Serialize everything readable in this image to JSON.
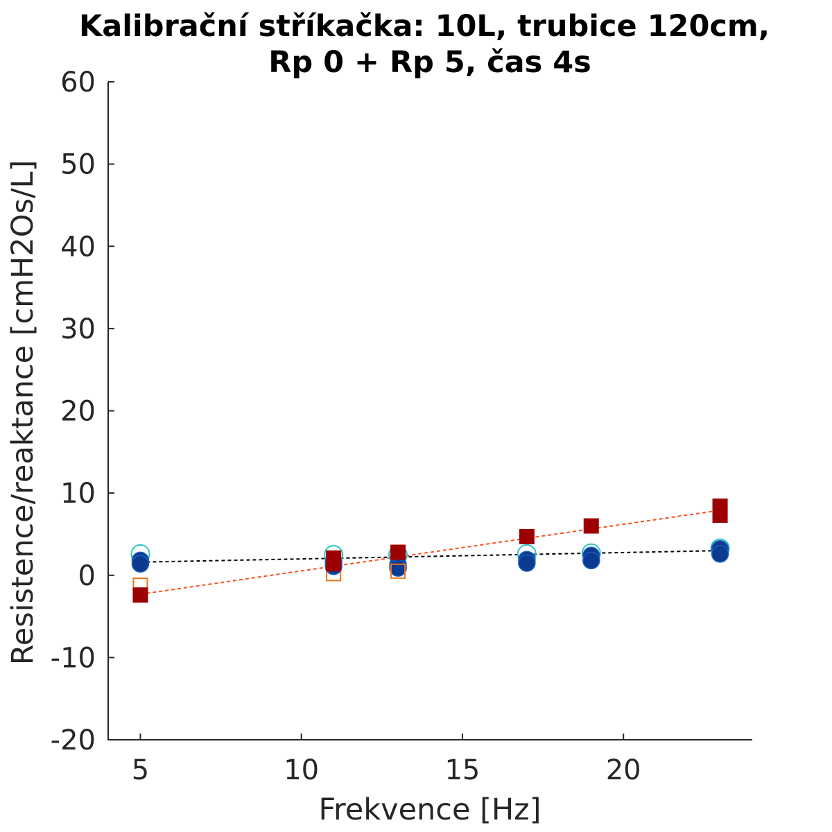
{
  "chart_data": {
    "type": "scatter",
    "title": [
      "Kalibrační stříkačka: 10L, trubice 120cm,",
      "Rp 0 + Rp 5, čas 4s"
    ],
    "xlabel": "Frekvence [Hz]",
    "ylabel": "Resistence/reaktance [cmH2Os/L]",
    "xlim": [
      4,
      24
    ],
    "ylim": [
      -20,
      60
    ],
    "xticks": [
      5,
      10,
      15,
      20
    ],
    "xtick_labels": [
      "5",
      "10",
      "15",
      "20"
    ],
    "yticks": [
      -20,
      -10,
      0,
      10,
      20,
      30,
      40,
      50,
      60
    ],
    "ytick_labels": [
      "-20",
      "-10",
      "0",
      "10",
      "20",
      "30",
      "40",
      "50",
      "60"
    ],
    "grid": false,
    "legend": "none",
    "series": [
      {
        "marker": "circle-open",
        "color": "#2ec4c4",
        "x": [
          5,
          11,
          13,
          17,
          19,
          23
        ],
        "y": [
          2.6,
          2.5,
          2.5,
          2.6,
          2.7,
          3.3
        ]
      },
      {
        "marker": "circle-filled",
        "color": "#0b3a8f",
        "x": [
          5,
          5,
          11,
          11,
          13,
          13,
          17,
          17,
          19,
          19,
          23,
          23
        ],
        "y": [
          1.8,
          1.4,
          1.6,
          1.1,
          1.3,
          0.9,
          1.9,
          1.5,
          2.4,
          1.8,
          3.2,
          2.6
        ]
      },
      {
        "marker": "square-open",
        "color": "#e8741a",
        "x": [
          5,
          11,
          13
        ],
        "y": [
          -1.2,
          0.2,
          0.5
        ]
      },
      {
        "marker": "square-filled",
        "color": "#9c0000",
        "x": [
          5,
          11,
          11,
          13,
          17,
          19,
          23,
          23
        ],
        "y": [
          -2.4,
          1.4,
          2.1,
          2.8,
          4.7,
          6.0,
          7.3,
          8.4
        ]
      }
    ],
    "fit_lines": [
      {
        "style": "dashed",
        "color": "#000000",
        "x": [
          5,
          23
        ],
        "y": [
          1.6,
          3.0
        ]
      },
      {
        "style": "dashed",
        "color": "#ff4d1a",
        "x": [
          5,
          23
        ],
        "y": [
          -2.3,
          7.9
        ]
      }
    ]
  }
}
